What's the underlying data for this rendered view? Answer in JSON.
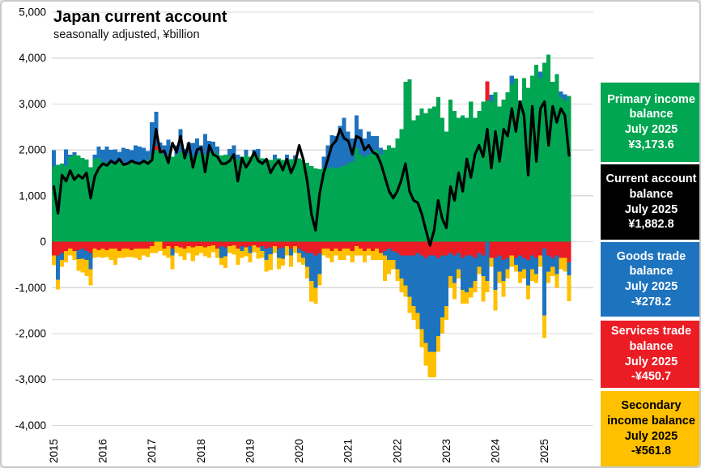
{
  "header": {
    "title": "Japan current account",
    "subtitle": "seasonally adjusted, ¥billion"
  },
  "colors": {
    "primary_income": "#00A651",
    "goods_trade": "#1E73BE",
    "services_trade": "#EC1C24",
    "secondary_income": "#FFC000",
    "current_account_line": "#000000",
    "gridline": "#D9D9D9"
  },
  "legend": [
    {
      "title": "Primary income balance",
      "period": "July 2025",
      "value": "¥3,173.6",
      "bg": "#00A651",
      "fg": "#FFFFFF"
    },
    {
      "title": "Current account balance",
      "period": "July 2025",
      "value": "¥1,882.8",
      "bg": "#000000",
      "fg": "#FFFFFF"
    },
    {
      "title": "Goods trade balance",
      "period": "July 2025",
      "value": "-¥278.2",
      "bg": "#1E73BE",
      "fg": "#FFFFFF"
    },
    {
      "title": "Services trade balance",
      "period": "July 2025",
      "value": "-¥450.7",
      "bg": "#EC1C24",
      "fg": "#FFFFFF"
    },
    {
      "title": "Secondary income balance",
      "period": "July 2025",
      "value": "-¥561.8",
      "bg": "#FFC000",
      "fg": "#000000"
    }
  ],
  "chart_data": {
    "type": "bar",
    "subtype": "stacked-bars-with-line",
    "title": "Japan current account",
    "subtitle": "seasonally adjusted, ¥billion",
    "x_range": "Jan 2015 - Jul 2025, monthly",
    "xlabel": "",
    "ylabel": "¥billion",
    "ylim": [
      -4000,
      5000
    ],
    "grid": true,
    "legend_position": "right",
    "y_axis": {
      "tick_labels": [
        "5,000",
        "4,000",
        "3,000",
        "2,000",
        "1,000",
        "0",
        "-1,000",
        "-2,000",
        "-3,000",
        "-4,000"
      ],
      "tick_values": [
        5000,
        4000,
        3000,
        2000,
        1000,
        0,
        -1000,
        -2000,
        -3000,
        -4000
      ]
    },
    "x_axis": {
      "tick_labels": [
        "2015",
        "2016",
        "2017",
        "2018",
        "2019",
        "2020",
        "2021",
        "2022",
        "2023",
        "2024",
        "2025"
      ]
    },
    "series": [
      {
        "name": "Primary income balance",
        "type": "bar",
        "color": "#00A651",
        "values": [
          1640,
          1680,
          1700,
          1660,
          1850,
          1900,
          1880,
          1830,
          1790,
          1620,
          1800,
          1820,
          1750,
          1720,
          1700,
          1730,
          1760,
          1700,
          1720,
          1740,
          1700,
          1720,
          1750,
          1780,
          1900,
          2000,
          1950,
          1900,
          1870,
          1850,
          1900,
          1950,
          1920,
          1900,
          1850,
          1900,
          1950,
          1900,
          1950,
          1980,
          1920,
          1880,
          1900,
          1870,
          1850,
          1800,
          1850,
          1880,
          1850,
          1900,
          1870,
          1820,
          1800,
          1780,
          1800,
          1820,
          1780,
          1750,
          1800,
          1780,
          1820,
          1780,
          1720,
          1650,
          1600,
          1580,
          1600,
          1600,
          1620,
          1600,
          1620,
          1650,
          1700,
          1750,
          2050,
          1900,
          1850,
          1900,
          1950,
          2000,
          1900,
          2000,
          2100,
          2050,
          2250,
          2450,
          3480,
          3540,
          2650,
          2750,
          2900,
          2800,
          2900,
          2950,
          3150,
          2700,
          2400,
          3100,
          2850,
          2700,
          2750,
          2700,
          3050,
          2700,
          2850,
          3050,
          3080,
          3050,
          3250,
          2950,
          3100,
          3250,
          3430,
          3550,
          3080,
          3560,
          3350,
          3620,
          3850,
          3560,
          3900,
          4070,
          3480,
          3650,
          3150,
          3080,
          3173.6
        ]
      },
      {
        "name": "Services trade balance",
        "type": "bar",
        "color": "#EC1C24",
        "values": [
          -300,
          -300,
          -250,
          -200,
          -150,
          -200,
          -180,
          -150,
          -200,
          -250,
          -150,
          -180,
          -150,
          -180,
          -150,
          -150,
          -200,
          -150,
          -150,
          -180,
          -150,
          -150,
          -150,
          -150,
          -100,
          80,
          60,
          -150,
          -100,
          -150,
          -100,
          -120,
          -150,
          -100,
          -120,
          -100,
          -100,
          -120,
          -100,
          -80,
          -150,
          -100,
          -120,
          -100,
          -80,
          -150,
          -100,
          -120,
          -100,
          -80,
          -120,
          -100,
          -150,
          -120,
          -100,
          -150,
          -120,
          -100,
          -150,
          -100,
          -150,
          -200,
          -250,
          -250,
          -300,
          -250,
          -150,
          -150,
          -200,
          -150,
          -200,
          -150,
          -150,
          -200,
          -100,
          -150,
          -200,
          -150,
          -200,
          -150,
          -250,
          -200,
          -150,
          -200,
          -250,
          -300,
          -300,
          -300,
          -300,
          -250,
          -300,
          -350,
          -300,
          -300,
          -350,
          -300,
          -300,
          -250,
          -300,
          -250,
          -350,
          -300,
          -300,
          -350,
          -250,
          -300,
          410,
          -350,
          -350,
          -300,
          -400,
          -350,
          -300,
          -350,
          -300,
          -350,
          -400,
          -300,
          -350,
          -300,
          -150,
          -300,
          -350,
          -300,
          -350,
          -350,
          -450.7
        ]
      },
      {
        "name": "Goods trade balance",
        "type": "bar",
        "color": "#1E73BE",
        "values": [
          350,
          -530,
          -150,
          350,
          50,
          50,
          -200,
          -220,
          -200,
          -350,
          100,
          250,
          250,
          350,
          300,
          280,
          200,
          350,
          300,
          250,
          400,
          350,
          300,
          200,
          700,
          750,
          150,
          200,
          350,
          -150,
          200,
          500,
          100,
          250,
          300,
          350,
          150,
          450,
          250,
          200,
          150,
          -250,
          -200,
          150,
          250,
          100,
          -100,
          120,
          -150,
          100,
          150,
          -100,
          -250,
          -150,
          100,
          -200,
          -250,
          150,
          -150,
          100,
          -100,
          -150,
          -300,
          -600,
          -700,
          -450,
          250,
          500,
          700,
          700,
          900,
          1050,
          700,
          500,
          700,
          550,
          400,
          500,
          350,
          300,
          150,
          -100,
          -250,
          -200,
          -350,
          -500,
          -650,
          -900,
          -1100,
          -1300,
          -1600,
          -1850,
          -2100,
          -2100,
          -1700,
          -1350,
          -1100,
          -500,
          -600,
          -350,
          -700,
          -800,
          -700,
          -500,
          -300,
          -450,
          -850,
          150,
          -700,
          -350,
          -450,
          -250,
          190,
          -150,
          -350,
          -250,
          -550,
          -300,
          -350,
          140,
          -1450,
          -350,
          -200,
          -400,
          120,
          130,
          -278.2
        ]
      },
      {
        "name": "Secondary income balance",
        "type": "bar",
        "color": "#FFC000",
        "values": [
          -210,
          -210,
          -150,
          -250,
          -150,
          -200,
          -250,
          -300,
          -350,
          -350,
          -200,
          -150,
          -200,
          -150,
          -250,
          -350,
          -150,
          -200,
          -180,
          -150,
          -200,
          -250,
          -150,
          -180,
          -150,
          -250,
          -200,
          -150,
          -250,
          -300,
          -150,
          -200,
          -250,
          -150,
          -300,
          -200,
          -150,
          -200,
          -250,
          -150,
          -200,
          -150,
          -250,
          -150,
          -200,
          -350,
          -150,
          -200,
          -200,
          -150,
          -250,
          -150,
          -250,
          -350,
          -150,
          -250,
          -150,
          -200,
          -250,
          -150,
          -200,
          -150,
          -250,
          -450,
          -350,
          -250,
          -150,
          -200,
          -250,
          -150,
          -200,
          -250,
          -150,
          -250,
          -200,
          -150,
          -250,
          -150,
          -200,
          -250,
          -150,
          -550,
          -300,
          -200,
          -250,
          -300,
          -250,
          -350,
          -300,
          -350,
          -400,
          -500,
          -550,
          -550,
          -350,
          -350,
          -300,
          -250,
          -350,
          -200,
          -300,
          -250,
          -220,
          -250,
          -150,
          -550,
          -250,
          -200,
          -450,
          -250,
          -350,
          -200,
          -250,
          -150,
          -250,
          -200,
          -300,
          -250,
          -200,
          -250,
          -500,
          -250,
          -200,
          -300,
          -250,
          -300,
          -561.8
        ]
      },
      {
        "name": "Current account balance",
        "type": "line",
        "color": "#000000",
        "values": [
          1200,
          620,
          1450,
          1320,
          1550,
          1350,
          1450,
          1380,
          1500,
          950,
          1420,
          1600,
          1700,
          1660,
          1760,
          1700,
          1800,
          1680,
          1700,
          1760,
          1720,
          1700,
          1760,
          1700,
          1780,
          2450,
          1950,
          1980,
          1720,
          2150,
          1950,
          2300,
          1820,
          2150,
          1620,
          2000,
          2050,
          1520,
          2100,
          1900,
          1850,
          1700,
          1700,
          1760,
          1900,
          1320,
          1820,
          1620,
          1760,
          1950,
          1760,
          1700,
          1800,
          1500,
          1660,
          1760,
          1560,
          1800,
          1500,
          1700,
          2100,
          1800,
          1300,
          600,
          250,
          1050,
          1500,
          1800,
          2100,
          2200,
          2450,
          2250,
          2200,
          1900,
          2300,
          2250,
          2000,
          2100,
          1950,
          1900,
          1700,
          1400,
          1100,
          950,
          1100,
          1350,
          1700,
          1100,
          900,
          850,
          600,
          250,
          -80,
          250,
          900,
          500,
          300,
          1200,
          900,
          1500,
          1100,
          1800,
          1400,
          1900,
          2100,
          1850,
          2450,
          1600,
          2400,
          1750,
          2450,
          2300,
          2900,
          2400,
          3050,
          2750,
          1450,
          2950,
          1750,
          2900,
          3050,
          2100,
          2950,
          2600,
          2900,
          2750,
          1882.8
        ]
      }
    ]
  }
}
